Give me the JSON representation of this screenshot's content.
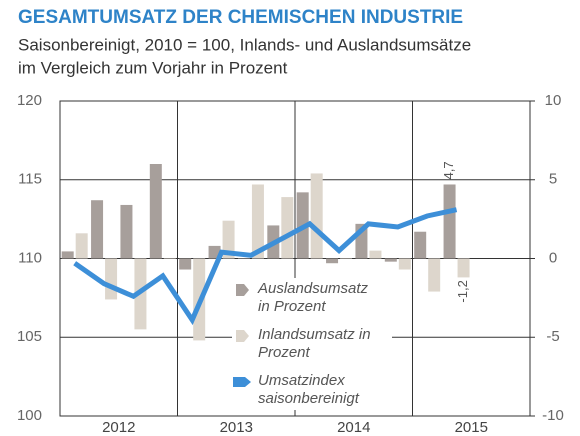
{
  "chart_data": {
    "type": "bar-line",
    "title": "GESAMTUMSATZ DER CHEMISCHEN INDUSTRIE",
    "subtitle": [
      "Saisonbereinigt, 2010 = 100, Inlands- und Auslandsumsätze",
      "im Vergleich zum Vorjahr in Prozent"
    ],
    "categories": [
      null,
      null,
      null,
      null,
      null,
      null,
      null,
      null,
      null,
      null,
      null,
      null,
      null,
      null,
      null,
      null
    ],
    "year_labels": [
      "2012",
      "2013",
      "2014",
      "2015"
    ],
    "series": [
      {
        "name": "Auslandsumsatz in Prozent",
        "type": "bar",
        "axis": "y2",
        "color": "#a79f9b",
        "values": [
          0.45,
          3.7,
          3.4,
          6.0,
          -0.7,
          0.8,
          0,
          2.1,
          4.2,
          -0.3,
          2.2,
          -0.2,
          1.7,
          4.7,
          null,
          null
        ],
        "value_labels": [
          null,
          null,
          null,
          null,
          null,
          null,
          null,
          null,
          null,
          null,
          null,
          null,
          null,
          "4,7",
          null,
          null
        ]
      },
      {
        "name": "Inlandsumsatz in Prozent",
        "type": "bar",
        "axis": "y2",
        "color": "#ddd6cc",
        "values": [
          1.6,
          -2.6,
          -4.5,
          0,
          -5.2,
          2.4,
          4.7,
          3.9,
          5.4,
          0,
          0.5,
          -0.7,
          -2.1,
          -1.2,
          null,
          null
        ],
        "value_labels": [
          null,
          null,
          null,
          null,
          null,
          null,
          null,
          null,
          null,
          null,
          null,
          null,
          null,
          "-1,2",
          null,
          null
        ]
      },
      {
        "name": "Umsatzindex saisonbereinigt",
        "type": "line",
        "axis": "y",
        "color": "#3d8fd8",
        "values": [
          109.7,
          108.4,
          107.6,
          108.9,
          106.1,
          110.4,
          110.2,
          111.2,
          112.2,
          110.5,
          112.2,
          112.0,
          112.7,
          113.1,
          null,
          null
        ]
      }
    ],
    "ylim": [
      100,
      120
    ],
    "yticks": [
      100,
      105,
      110,
      115,
      120
    ],
    "y2lim": [
      -10,
      10
    ],
    "y2ticks": [
      -10,
      -5,
      0,
      5,
      10
    ],
    "grid": true
  }
}
